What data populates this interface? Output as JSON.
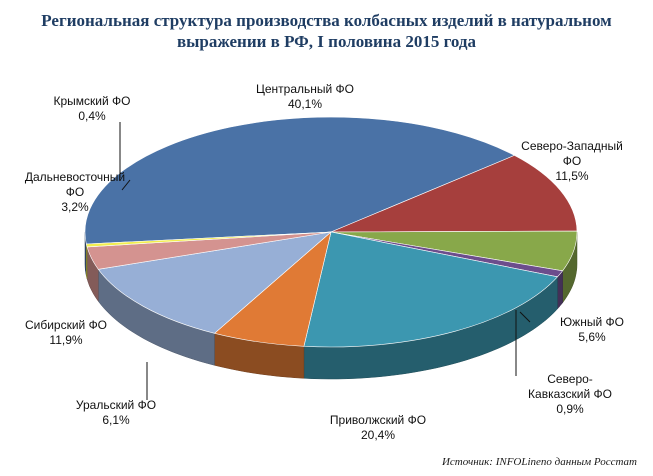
{
  "title_lines": [
    "Региональная структура производства колбасных изделий в натуральном",
    "выражении в РФ, I половина 2015 года"
  ],
  "source": "Источник: INFOLineпо данным Росстат",
  "chart_data": {
    "type": "pie",
    "title": "Региональная структура производства колбасных изделий в натуральном выражении в РФ, I половина 2015 года",
    "unit": "%",
    "slices": [
      {
        "label_lines": [
          "Центральный  ФО"
        ],
        "value_text": "40,1%",
        "value": 40.1,
        "color": "#4a72a6"
      },
      {
        "label_lines": [
          "Северо-Западный",
          "ФО"
        ],
        "value_text": "11,5%",
        "value": 11.5,
        "color": "#a63f3d"
      },
      {
        "label_lines": [
          "Южный ФО"
        ],
        "value_text": "5,6%",
        "value": 5.6,
        "color": "#88a84a"
      },
      {
        "label_lines": [
          "Северо-",
          "Кавказский ФО"
        ],
        "value_text": "0,9%",
        "value": 0.9,
        "color": "#6c4d8c"
      },
      {
        "label_lines": [
          "Приволжский  ФО"
        ],
        "value_text": "20,4%",
        "value": 20.4,
        "color": "#3c97b0"
      },
      {
        "label_lines": [
          "Уральский  ФО"
        ],
        "value_text": "6,1%",
        "value": 6.1,
        "color": "#e07a35"
      },
      {
        "label_lines": [
          "Сибирский  ФО"
        ],
        "value_text": "11,9%",
        "value": 11.9,
        "color": "#97afd6"
      },
      {
        "label_lines": [
          "Дальневосточный",
          "ФО"
        ],
        "value_text": "3,2%",
        "value": 3.2,
        "color": "#d49390"
      },
      {
        "label_lines": [
          "Крымский  ФО"
        ],
        "value_text": "0,4%",
        "value": 0.4,
        "color": "#f2ee4e"
      }
    ]
  }
}
